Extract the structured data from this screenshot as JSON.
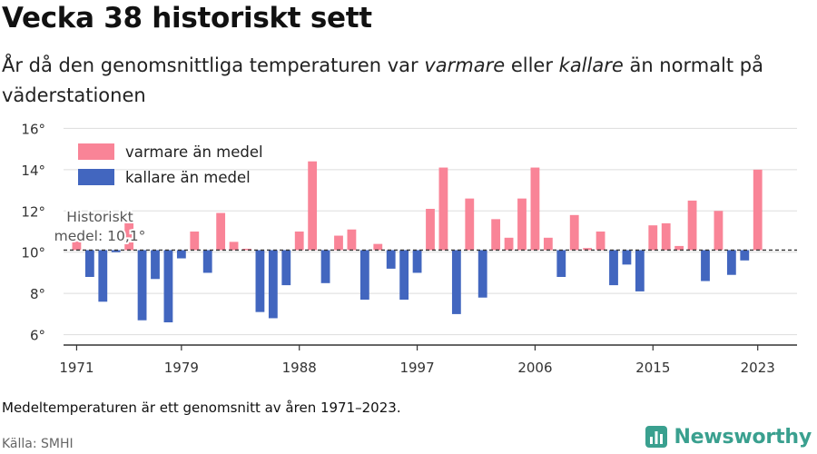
{
  "title": "Vecka 38 historiskt sett",
  "subtitle": {
    "part1": "År då den genomsnittliga temperaturen var ",
    "warm_word": "varmare",
    "part2": " eller ",
    "cold_word": "kallare",
    "part3": " än normalt på väderstationen"
  },
  "footnote": "Medeltemperaturen är ett genomsnitt av åren 1971–2023.",
  "source": "Källa: SMHI",
  "brand": "Newsworthy",
  "colors": {
    "warm": "#f98497",
    "cold": "#4266bf",
    "brand": "#3aa08f",
    "grid": "#dddddd",
    "axis": "#333333",
    "text": "#333333",
    "label": "#555555"
  },
  "chart_data": {
    "type": "bar",
    "baseline": 10.1,
    "ylim": [
      5.5,
      16.5
    ],
    "yticks": [
      6,
      8,
      10,
      12,
      14,
      16
    ],
    "ytick_labels": [
      "6°",
      "8°",
      "10°",
      "12°",
      "14°",
      "16°"
    ],
    "xtick_years": [
      1971,
      1979,
      1988,
      1997,
      2006,
      2015,
      2023
    ],
    "xlim": [
      1970,
      2026
    ],
    "legend": [
      "varmare än medel",
      "kallare än medel"
    ],
    "legend_position": "top-left",
    "baseline_label": [
      "Historiskt",
      "medel: 10,1°"
    ],
    "years": [
      1971,
      1972,
      1973,
      1974,
      1975,
      1976,
      1977,
      1978,
      1979,
      1980,
      1981,
      1982,
      1983,
      1984,
      1985,
      1986,
      1987,
      1988,
      1989,
      1990,
      1991,
      1992,
      1993,
      1994,
      1995,
      1996,
      1997,
      1998,
      1999,
      2000,
      2001,
      2002,
      2003,
      2004,
      2005,
      2006,
      2007,
      2008,
      2009,
      2010,
      2011,
      2012,
      2013,
      2014,
      2015,
      2016,
      2017,
      2018,
      2019,
      2020,
      2021,
      2022,
      2023
    ],
    "values": [
      10.6,
      8.8,
      7.6,
      10.0,
      11.4,
      6.7,
      8.7,
      6.6,
      9.7,
      11.0,
      9.0,
      11.9,
      10.5,
      10.1,
      7.1,
      6.8,
      8.4,
      11.0,
      14.4,
      8.5,
      10.8,
      11.1,
      7.7,
      10.4,
      9.2,
      7.7,
      9.0,
      12.1,
      14.1,
      7.0,
      12.6,
      7.8,
      11.6,
      10.7,
      12.6,
      14.1,
      10.7,
      8.8,
      11.8,
      10.2,
      11.0,
      8.4,
      9.4,
      8.1,
      11.3,
      11.4,
      10.3,
      12.5,
      8.6,
      12.0,
      8.9,
      9.6,
      14.0
    ]
  }
}
